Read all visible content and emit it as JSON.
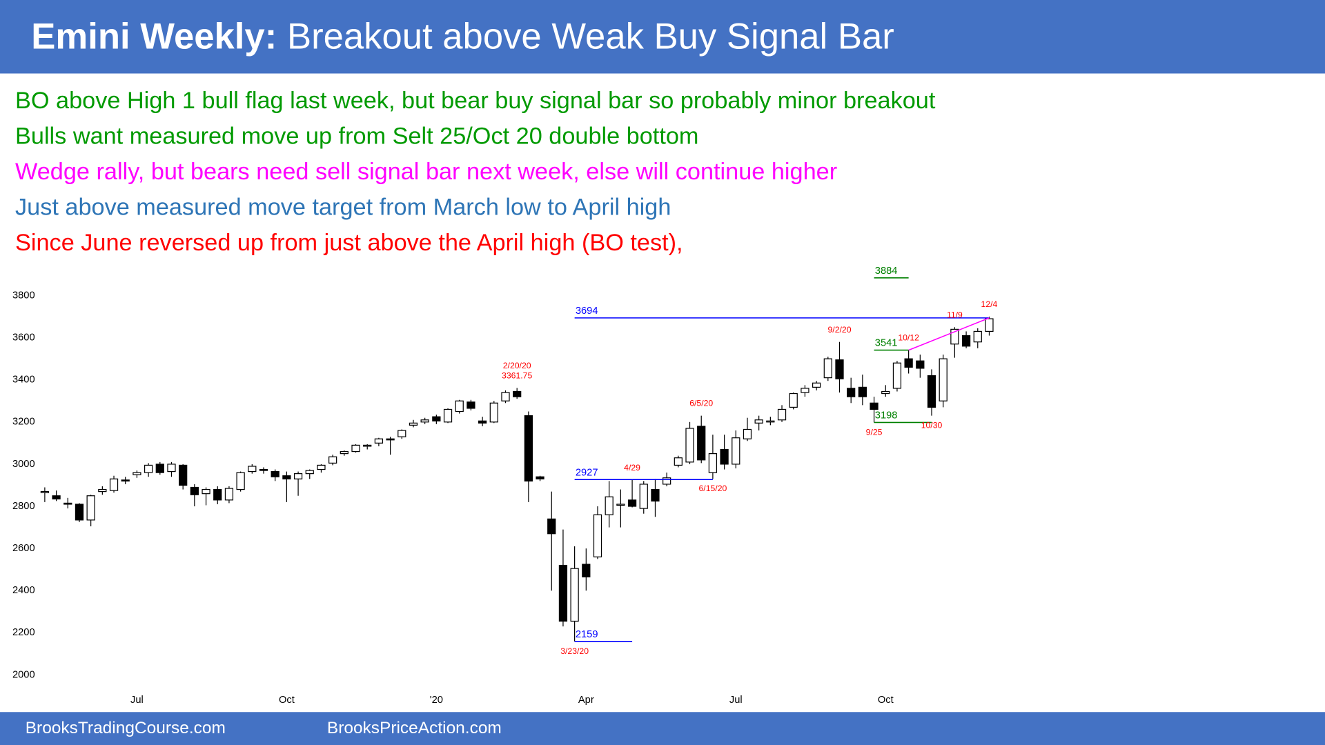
{
  "header": {
    "title_bold": "Emini Weekly:",
    "title": "Breakout above Weak Buy Signal Bar"
  },
  "notes": [
    {
      "text": "BO above High 1 bull flag last week, but bear buy signal bar so probably minor breakout",
      "color": "#009a00"
    },
    {
      "text": "Bulls want measured move up from Selt 25/Oct 20 double bottom",
      "color": "#009a00"
    },
    {
      "text": "Wedge rally, but bears need sell signal bar next week, else will continue higher",
      "color": "#ff00ff"
    },
    {
      "text": "Just above measured move target from March low to April high",
      "color": "#2e75b6"
    },
    {
      "text": "Since June reversed up from just above the April high (BO test),",
      "color": "#ff0000"
    }
  ],
  "footer": [
    "BrooksTradingCourse.com",
    "BrooksPriceAction.com"
  ],
  "chart_data": {
    "type": "candlestick",
    "x": [
      0,
      1,
      2,
      3,
      4,
      5,
      6,
      7,
      8,
      9,
      10,
      11,
      12,
      13,
      14,
      15,
      16,
      17,
      18,
      19,
      20,
      21,
      22,
      23,
      24,
      25,
      26,
      27,
      28,
      29,
      30,
      31,
      32,
      33,
      34,
      35,
      36,
      37,
      38,
      39,
      40,
      41,
      42,
      43,
      44,
      45,
      46,
      47,
      48,
      49,
      50,
      51,
      52,
      53,
      54,
      55,
      56,
      57,
      58,
      59,
      60,
      61,
      62,
      63,
      64,
      65,
      66,
      67,
      68,
      69,
      70,
      71,
      72,
      73,
      74,
      75,
      76,
      77,
      78,
      79,
      80,
      81,
      82
    ],
    "open": [
      2865,
      2850,
      2815,
      2810,
      2735,
      2870,
      2875,
      2925,
      2950,
      2960,
      3000,
      2965,
      2995,
      2890,
      2860,
      2880,
      2830,
      2880,
      2965,
      2975,
      2965,
      2945,
      2930,
      2955,
      2975,
      3005,
      3050,
      3060,
      3085,
      3100,
      3120,
      3130,
      3185,
      3200,
      3225,
      3200,
      3250,
      3295,
      3205,
      3200,
      3300,
      3345,
      3230,
      2940,
      2740,
      2520,
      2255,
      2525,
      2560,
      2760,
      2805,
      2830,
      2790,
      2880,
      2905,
      2995,
      3010,
      3180,
      2960,
      3070,
      3000,
      3120,
      3195,
      3200,
      3210,
      3270,
      3340,
      3365,
      3410,
      3495,
      3360,
      3365,
      3290,
      3335,
      3360,
      3500,
      3490,
      3420,
      3300,
      3570,
      3610,
      3580,
      3630
    ],
    "high": [
      2890,
      2875,
      2840,
      2815,
      2855,
      2895,
      2945,
      2940,
      2970,
      3005,
      3010,
      3010,
      3000,
      2905,
      2890,
      2895,
      2895,
      2965,
      3000,
      2985,
      2975,
      2965,
      2965,
      2975,
      3000,
      3045,
      3065,
      3095,
      3095,
      3125,
      3130,
      3165,
      3210,
      3220,
      3235,
      3265,
      3305,
      3305,
      3225,
      3300,
      3350,
      3361.75,
      3250,
      2945,
      2870,
      2690,
      2610,
      2600,
      2800,
      2920,
      2880,
      2925,
      2920,
      2930,
      2960,
      3040,
      3200,
      3230,
      3140,
      3140,
      3160,
      3220,
      3230,
      3225,
      3280,
      3340,
      3375,
      3395,
      3510,
      3580,
      3410,
      3425,
      3320,
      3375,
      3490,
      3541,
      3520,
      3450,
      3520,
      3650,
      3630,
      3645,
      3700
    ],
    "low": [
      2820,
      2825,
      2790,
      2725,
      2705,
      2855,
      2865,
      2905,
      2935,
      2940,
      2950,
      2940,
      2880,
      2800,
      2805,
      2810,
      2815,
      2870,
      2955,
      2955,
      2920,
      2820,
      2850,
      2930,
      2960,
      2995,
      3040,
      3055,
      3070,
      3085,
      3045,
      3120,
      3175,
      3190,
      3190,
      3195,
      3240,
      3255,
      3180,
      3195,
      3290,
      3310,
      2820,
      2920,
      2400,
      2230,
      2159,
      2400,
      2550,
      2700,
      2700,
      2795,
      2765,
      2750,
      2895,
      2985,
      3000,
      3005,
      2930,
      2975,
      2980,
      3110,
      3160,
      3185,
      3200,
      3260,
      3320,
      3350,
      3395,
      3340,
      3290,
      3280,
      3198,
      3320,
      3345,
      3430,
      3410,
      3230,
      3270,
      3505,
      3550,
      3550,
      3610
    ],
    "close": [
      2870,
      2835,
      2810,
      2735,
      2850,
      2880,
      2930,
      2920,
      2960,
      2995,
      2960,
      3000,
      2900,
      2855,
      2880,
      2830,
      2885,
      2960,
      2990,
      2970,
      2940,
      2930,
      2955,
      2970,
      2995,
      3035,
      3060,
      3090,
      3090,
      3120,
      3115,
      3160,
      3195,
      3210,
      3205,
      3260,
      3300,
      3265,
      3195,
      3290,
      3340,
      3320,
      2920,
      2930,
      2670,
      2255,
      2505,
      2465,
      2760,
      2845,
      2810,
      2800,
      2905,
      2825,
      2935,
      3030,
      3170,
      3020,
      3050,
      3000,
      3125,
      3165,
      3210,
      3205,
      3260,
      3335,
      3360,
      3385,
      3500,
      3405,
      3320,
      3320,
      3260,
      3345,
      3480,
      3460,
      3455,
      3270,
      3500,
      3640,
      3560,
      3630,
      3690
    ],
    "up_color": "#ffffff",
    "down_color": "#000000",
    "xlim": [
      -3,
      110
    ],
    "ylim": [
      1940,
      3960
    ],
    "xticks": [
      {
        "value": 8,
        "label": "Jul"
      },
      {
        "value": 21,
        "label": "Oct"
      },
      {
        "value": 34,
        "label": "'20"
      },
      {
        "value": 47,
        "label": "Apr"
      },
      {
        "value": 60,
        "label": "Jul"
      },
      {
        "value": 73,
        "label": "Oct"
      }
    ],
    "yticks": [
      2000,
      2200,
      2400,
      2600,
      2800,
      3000,
      3200,
      3400,
      3600,
      3800
    ],
    "levels": [
      {
        "value": 3694,
        "x": [
          46,
          82
        ],
        "color": "#0000ff"
      },
      {
        "value": 2927,
        "x": [
          46,
          58
        ],
        "color": "#0000ff"
      },
      {
        "value": 2159,
        "x": [
          46,
          51
        ],
        "color": "#0000ff"
      },
      {
        "value": 3884,
        "x": [
          72,
          75
        ],
        "color": "#008000"
      },
      {
        "value": 3541,
        "x": [
          72,
          75
        ],
        "color": "#008000"
      },
      {
        "value": 3198,
        "x": [
          72,
          77
        ],
        "color": "#008000"
      }
    ],
    "trendlines": [
      {
        "x": [
          75,
          82
        ],
        "values": [
          3541,
          3694
        ],
        "color": "#ff00ff"
      }
    ],
    "annotation_color": "#ff0000",
    "annotations": [
      {
        "text": "3361.75",
        "x": 41,
        "side": "above"
      },
      {
        "text": "2/20/20",
        "x": 41,
        "side": "above"
      },
      {
        "text": "3/23/20",
        "x": 46,
        "side": "below"
      },
      {
        "text": "4/29",
        "x": 51,
        "side": "above"
      },
      {
        "text": "6/5/20",
        "x": 57,
        "side": "above"
      },
      {
        "text": "6/15/20",
        "x": 58,
        "side": "below"
      },
      {
        "text": "9/2/20",
        "x": 69,
        "side": "above"
      },
      {
        "text": "9/25",
        "x": 72,
        "side": "below"
      },
      {
        "text": "10/12",
        "x": 75,
        "side": "above"
      },
      {
        "text": "10/30",
        "x": 77,
        "side": "below"
      },
      {
        "text": "11/9",
        "x": 79,
        "side": "above"
      },
      {
        "text": "12/4",
        "x": 82,
        "side": "above"
      }
    ]
  }
}
